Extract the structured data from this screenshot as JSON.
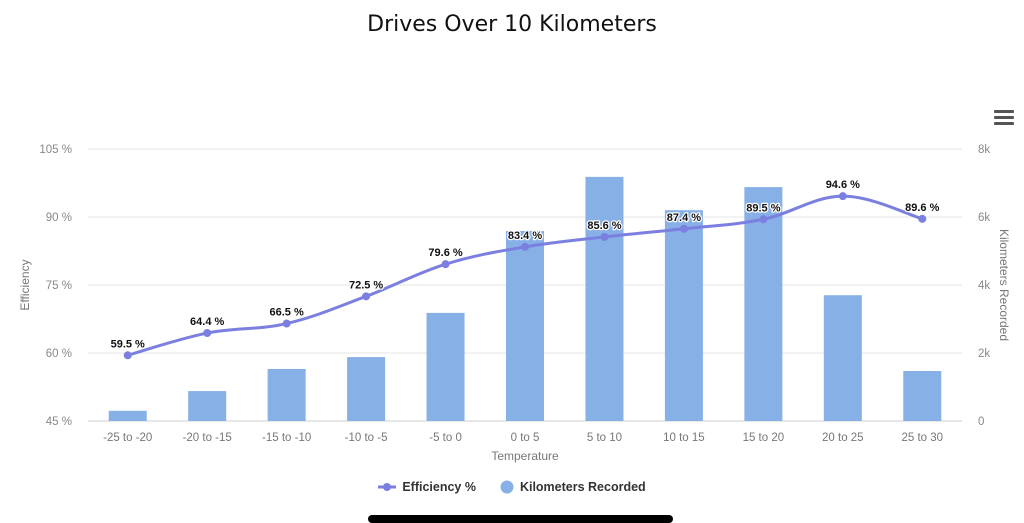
{
  "chart_data": {
    "type": "bar+line",
    "title": "Drives Over 10 Kilometers",
    "xlabel": "Temperature",
    "ylabel_left": "Efficiency",
    "ylabel_right": "Kilometers Recorded",
    "categories": [
      "-25 to -20",
      "-20 to -15",
      "-15 to -10",
      "-10 to -5",
      "-5 to 0",
      "0 to 5",
      "5 to 10",
      "10 to 15",
      "15 to 20",
      "20 to 25",
      "25 to 30"
    ],
    "left_ticks": [
      "45 %",
      "60 %",
      "75 %",
      "90 %",
      "105 %"
    ],
    "left_tick_values": [
      45,
      60,
      75,
      90,
      105
    ],
    "right_ticks": [
      "0",
      "2k",
      "4k",
      "6k",
      "8k"
    ],
    "right_tick_values": [
      0,
      2000,
      4000,
      6000,
      8000
    ],
    "ylim_left": [
      45,
      105
    ],
    "ylim_right": [
      0,
      8000
    ],
    "grid": true,
    "legend_position": "bottom-center",
    "series": [
      {
        "name": "Efficiency %",
        "type": "line",
        "axis": "left",
        "color": "#7b7fe0",
        "values": [
          59.5,
          64.4,
          66.5,
          72.5,
          79.6,
          83.4,
          85.6,
          87.4,
          89.5,
          94.6,
          89.6
        ],
        "labels": [
          "59.5 %",
          "64.4 %",
          "66.5 %",
          "72.5 %",
          "79.6 %",
          "83.4 %",
          "85.6 %",
          "87.4 %",
          "89.5 %",
          "94.6 %",
          "89.6 %"
        ]
      },
      {
        "name": "Kilometers Recorded",
        "type": "bar",
        "axis": "right",
        "color": "#86b0e6",
        "values": [
          300,
          880,
          1530,
          1880,
          3180,
          5590,
          7180,
          6200,
          6880,
          3700,
          1470
        ]
      }
    ]
  },
  "menu": {
    "icon": "hamburger-menu-icon"
  }
}
